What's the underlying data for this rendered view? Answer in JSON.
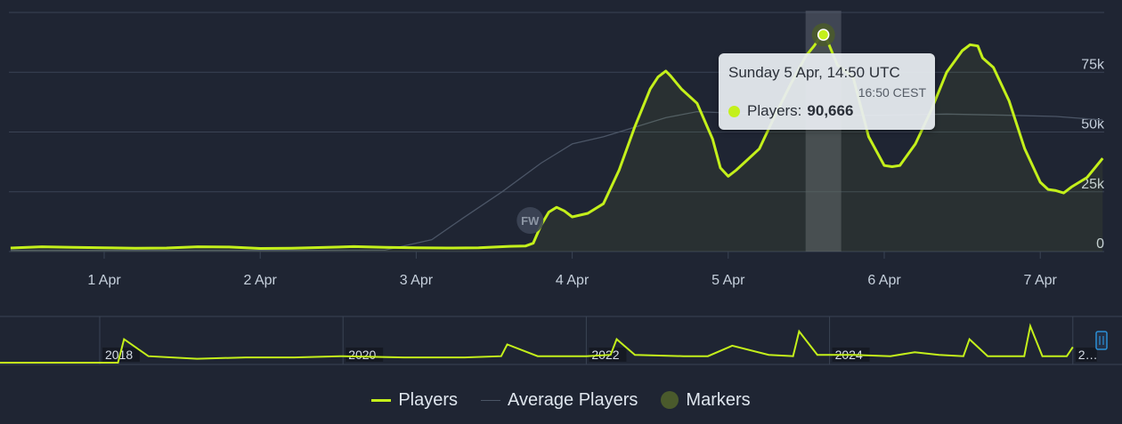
{
  "colors": {
    "background": "#1f2533",
    "players": "#c4f01b",
    "average": "#4b5566",
    "marker": "#4a5a2c",
    "grid": "#3a4354",
    "axis_text": "#c6d0dc",
    "highlight_band": "#5b6270"
  },
  "chart_data": [
    {
      "type": "line",
      "title": "",
      "xlabel": "",
      "ylabel": "",
      "x_tick_labels": [
        "1 Apr",
        "2 Apr",
        "3 Apr",
        "4 Apr",
        "5 Apr",
        "6 Apr",
        "7 Apr"
      ],
      "y_tick_labels": [
        "0",
        "25k",
        "50k",
        "75k"
      ],
      "y_ticks": [
        0,
        25000,
        50000,
        75000
      ],
      "ylim": [
        0,
        100000
      ],
      "xlim_days": [
        0.39,
        7.42
      ],
      "grid": true,
      "legend_position": "bottom-center",
      "series": [
        {
          "name": "Players",
          "x_days": [
            0.4,
            0.6,
            0.8,
            1.0,
            1.2,
            1.4,
            1.6,
            1.8,
            2.0,
            2.2,
            2.4,
            2.6,
            2.8,
            3.0,
            3.2,
            3.4,
            3.6,
            3.7,
            3.75,
            3.8,
            3.85,
            3.9,
            3.95,
            4.0,
            4.1,
            4.2,
            4.3,
            4.4,
            4.5,
            4.55,
            4.6,
            4.63,
            4.7,
            4.8,
            4.9,
            4.95,
            5.0,
            5.05,
            5.1,
            5.2,
            5.3,
            5.4,
            5.5,
            5.55,
            5.6,
            5.63,
            5.7,
            5.8,
            5.9,
            6.0,
            6.05,
            6.1,
            6.2,
            6.3,
            6.4,
            6.5,
            6.55,
            6.6,
            6.63,
            6.7,
            6.8,
            6.9,
            7.0,
            7.05,
            7.1,
            7.15,
            7.2,
            7.25,
            7.3,
            7.35,
            7.4
          ],
          "values": [
            1500,
            2000,
            1800,
            1600,
            1400,
            1500,
            2000,
            1900,
            1300,
            1400,
            1700,
            2100,
            1800,
            1600,
            1500,
            1600,
            2200,
            2300,
            3500,
            11000,
            16500,
            18500,
            17000,
            14500,
            16000,
            20000,
            34000,
            52000,
            68000,
            73000,
            75500,
            73500,
            68000,
            62000,
            47000,
            35000,
            31500,
            34000,
            37000,
            43000,
            57000,
            70000,
            82000,
            86000,
            90666,
            89000,
            78000,
            73000,
            48000,
            36000,
            35500,
            36000,
            45000,
            59000,
            75000,
            84000,
            86500,
            86000,
            81000,
            77000,
            63000,
            43000,
            29000,
            26000,
            25500,
            24500,
            27000,
            29000,
            31000,
            35000,
            39000
          ]
        },
        {
          "name": "Average Players",
          "x_days": [
            0.4,
            2.0,
            2.8,
            3.1,
            3.3,
            3.55,
            3.8,
            4.0,
            4.2,
            4.4,
            4.6,
            4.8,
            5.0,
            5.3,
            5.6,
            6.0,
            6.4,
            6.8,
            7.1,
            7.4
          ],
          "values": [
            500,
            500,
            600,
            5000,
            14000,
            25000,
            37000,
            45000,
            48000,
            52000,
            56000,
            58500,
            58000,
            57500,
            57000,
            57000,
            57500,
            57000,
            56500,
            55000
          ]
        }
      ],
      "markers": [
        {
          "label": "FW",
          "x_days": 3.73
        }
      ],
      "tooltip": {
        "title": "Sunday 5 Apr, 14:50 UTC",
        "subtitle": "16:50 CEST",
        "series_label": "Players:",
        "value": "90,666",
        "x_days": 5.61
      }
    },
    {
      "type": "line",
      "title": "",
      "x_tick_labels": [
        "2018",
        "2020",
        "2022",
        "2024",
        "2…"
      ],
      "series": [
        {
          "name": "",
          "x_years": [
            2017.0,
            2017.5,
            2017.9,
            2018.15,
            2018.2,
            2018.4,
            2018.8,
            2019.2,
            2019.6,
            2020.0,
            2020.5,
            2021.0,
            2021.3,
            2021.35,
            2021.6,
            2022.0,
            2022.2,
            2022.25,
            2022.4,
            2022.8,
            2023.0,
            2023.2,
            2023.5,
            2023.7,
            2023.75,
            2023.9,
            2024.2,
            2024.5,
            2024.7,
            2024.9,
            2025.1,
            2025.15,
            2025.3,
            2025.6,
            2025.65,
            2025.75,
            2025.95,
            2026.0
          ],
          "values": [
            0,
            0,
            0,
            0,
            18,
            5,
            3,
            4,
            4,
            5,
            4,
            4,
            5,
            14,
            5,
            5,
            6,
            18,
            6,
            5,
            5,
            13,
            6,
            5,
            24,
            6,
            6,
            5,
            8,
            6,
            5,
            18,
            5,
            5,
            28,
            5,
            5,
            12
          ]
        }
      ]
    }
  ],
  "legend": {
    "items": [
      {
        "label": "Players"
      },
      {
        "label": "Average Players"
      },
      {
        "label": "Markers"
      }
    ]
  },
  "tooltip": {
    "title": "Sunday 5 Apr, 14:50 UTC",
    "subtitle": "16:50 CEST",
    "series_label": "Players:",
    "value": "90,666"
  }
}
